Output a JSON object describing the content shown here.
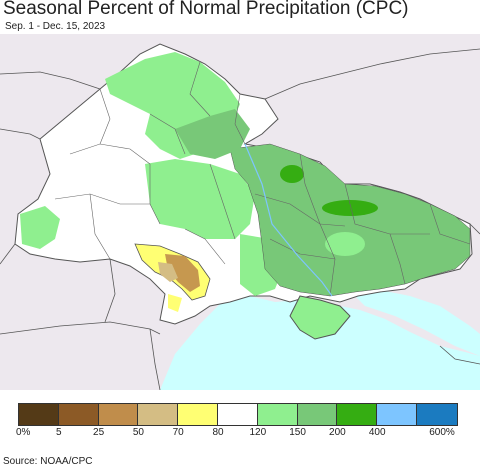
{
  "title": "Seasonal Percent of Normal Precipitation (CPC)",
  "subtitle": "Sep. 1 - Dec. 15, 2023",
  "source": "Source: NOAA/CPC",
  "legend": {
    "colors": [
      "#543a17",
      "#8c5a26",
      "#c08d4b",
      "#d4bd84",
      "#ffff73",
      "#ffffff",
      "#8fef8f",
      "#78c878",
      "#35ad12",
      "#7dc5ff",
      "#1b7bc0"
    ],
    "labels": [
      "0%",
      "5",
      "25",
      "50",
      "70",
      "80",
      "120",
      "150",
      "200",
      "400",
      "600%"
    ]
  },
  "map_colors": {
    "background": "#ede8ee",
    "sea": "#ccffff",
    "border": "#555555"
  }
}
